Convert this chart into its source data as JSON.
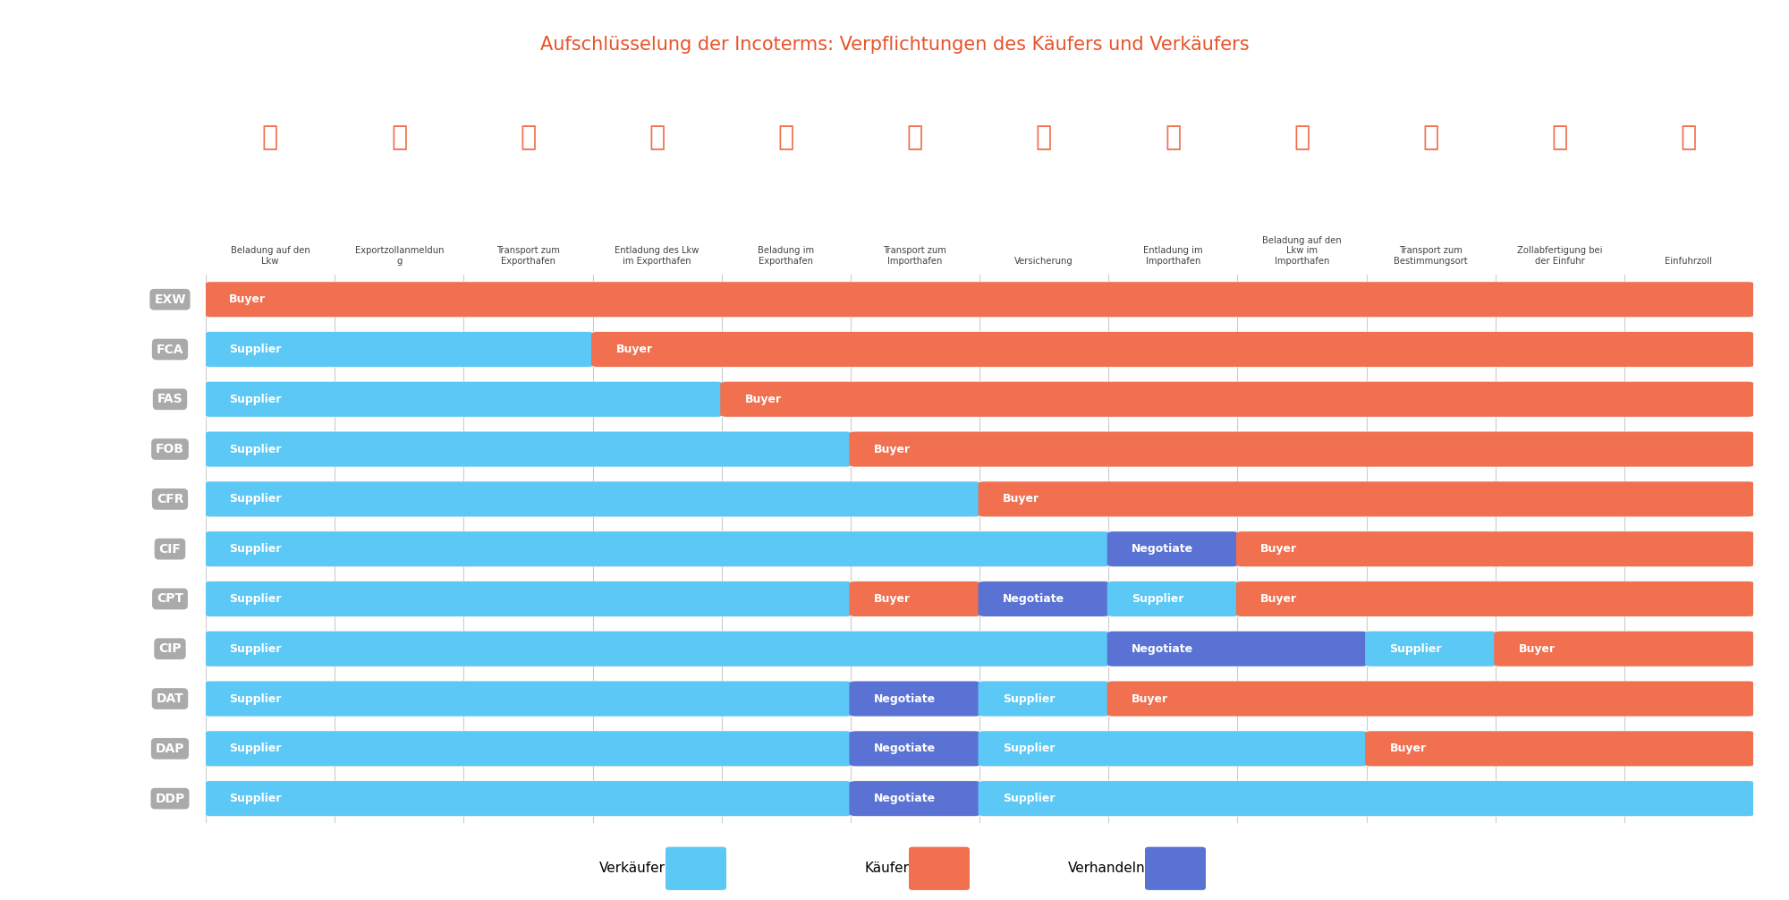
{
  "title": "Aufschlüsselung der Incoterms: Verpflichtungen des Käufers und Verkäufers",
  "title_color": "#E8532A",
  "columns": [
    "Beladung auf den\nLkw",
    "Exportzollanmeldun\ng",
    "Transport zum\nExporthafen",
    "Entladung des Lkw\nim Exporthafen",
    "Beladung im\nExporthafen",
    "Transport zum\nImporthafen",
    "Versicherung",
    "Entladung im\nImporthafen",
    "Beladung auf den\nLkw im\nImporthafen",
    "Transport zum\nBestimmungsort",
    "Zollabfertigung bei\nder Einfuhr",
    "Einfuhrzoll"
  ],
  "icons": [
    "🚚",
    "📋",
    "🚚",
    "⬇",
    "🚚",
    "🚢",
    "🛡",
    "⬇",
    "🚚",
    "🚚",
    "📋",
    "🏷"
  ],
  "icon_chars": [
    "🚛",
    "📋",
    "🚛",
    "📦",
    "🏗",
    "🚢",
    "🛡",
    "📦",
    "🚛",
    "🚛",
    "📋",
    "🏷"
  ],
  "rows": [
    {
      "label": "EXW",
      "segments": [
        {
          "span": [
            0,
            12
          ],
          "type": "buyer",
          "text": "Buyer"
        }
      ]
    },
    {
      "label": "FCA",
      "segments": [
        {
          "span": [
            0,
            3
          ],
          "type": "supplier",
          "text": "Supplier"
        },
        {
          "span": [
            3,
            12
          ],
          "type": "buyer",
          "text": "Buyer"
        }
      ]
    },
    {
      "label": "FAS",
      "segments": [
        {
          "span": [
            0,
            4
          ],
          "type": "supplier",
          "text": "Supplier"
        },
        {
          "span": [
            4,
            12
          ],
          "type": "buyer",
          "text": "Buyer"
        }
      ]
    },
    {
      "label": "FOB",
      "segments": [
        {
          "span": [
            0,
            5
          ],
          "type": "supplier",
          "text": "Supplier"
        },
        {
          "span": [
            5,
            12
          ],
          "type": "buyer",
          "text": "Buyer"
        }
      ]
    },
    {
      "label": "CFR",
      "segments": [
        {
          "span": [
            0,
            6
          ],
          "type": "supplier",
          "text": "Supplier"
        },
        {
          "span": [
            6,
            12
          ],
          "type": "buyer",
          "text": "Buyer"
        }
      ]
    },
    {
      "label": "CIF",
      "segments": [
        {
          "span": [
            0,
            7
          ],
          "type": "supplier",
          "text": "Supplier"
        },
        {
          "span": [
            7,
            8
          ],
          "type": "negotiate",
          "text": "Negotiate"
        },
        {
          "span": [
            8,
            12
          ],
          "type": "buyer",
          "text": "Buyer"
        }
      ]
    },
    {
      "label": "CPT",
      "segments": [
        {
          "span": [
            0,
            5
          ],
          "type": "supplier",
          "text": "Supplier"
        },
        {
          "span": [
            5,
            6
          ],
          "type": "buyer",
          "text": "Buyer"
        },
        {
          "span": [
            6,
            7
          ],
          "type": "negotiate",
          "text": "Negotiate"
        },
        {
          "span": [
            7,
            8
          ],
          "type": "supplier",
          "text": "Supplier"
        },
        {
          "span": [
            8,
            12
          ],
          "type": "buyer",
          "text": "Buyer"
        }
      ]
    },
    {
      "label": "CIP",
      "segments": [
        {
          "span": [
            0,
            7
          ],
          "type": "supplier",
          "text": "Supplier"
        },
        {
          "span": [
            7,
            9
          ],
          "type": "negotiate",
          "text": "Negotiate"
        },
        {
          "span": [
            9,
            10
          ],
          "type": "supplier",
          "text": "Supplier"
        },
        {
          "span": [
            10,
            12
          ],
          "type": "buyer",
          "text": "Buyer"
        }
      ]
    },
    {
      "label": "DAT",
      "segments": [
        {
          "span": [
            0,
            5
          ],
          "type": "supplier",
          "text": "Supplier"
        },
        {
          "span": [
            5,
            6
          ],
          "type": "negotiate",
          "text": "Negotiate"
        },
        {
          "span": [
            6,
            7
          ],
          "type": "supplier",
          "text": "Supplier"
        },
        {
          "span": [
            7,
            12
          ],
          "type": "buyer",
          "text": "Buyer"
        }
      ]
    },
    {
      "label": "DAP",
      "segments": [
        {
          "span": [
            0,
            5
          ],
          "type": "supplier",
          "text": "Supplier"
        },
        {
          "span": [
            5,
            6
          ],
          "type": "negotiate",
          "text": "Negotiate"
        },
        {
          "span": [
            6,
            9
          ],
          "type": "supplier",
          "text": "Supplier"
        },
        {
          "span": [
            9,
            12
          ],
          "type": "buyer",
          "text": "Buyer"
        }
      ]
    },
    {
      "label": "DDP",
      "segments": [
        {
          "span": [
            0,
            5
          ],
          "type": "supplier",
          "text": "Supplier"
        },
        {
          "span": [
            5,
            6
          ],
          "type": "negotiate",
          "text": "Negotiate"
        },
        {
          "span": [
            6,
            12
          ],
          "type": "supplier",
          "text": "Supplier"
        }
      ]
    }
  ],
  "colors": {
    "supplier": "#5BC8F5",
    "buyer": "#F07050",
    "negotiate": "#5B72D5",
    "background": "#FFFFFF",
    "label_bg": "#AAAAAA",
    "label_text": "#FFFFFF",
    "grid_line": "#CCCCCC",
    "icon_color": "#F07050",
    "row_bg": "#F0F0F0"
  },
  "num_cols": 12,
  "legend": {
    "verkaufer": "Verkäufer",
    "kaufer": "Käufer",
    "verhandeln": "Verhandeln"
  }
}
